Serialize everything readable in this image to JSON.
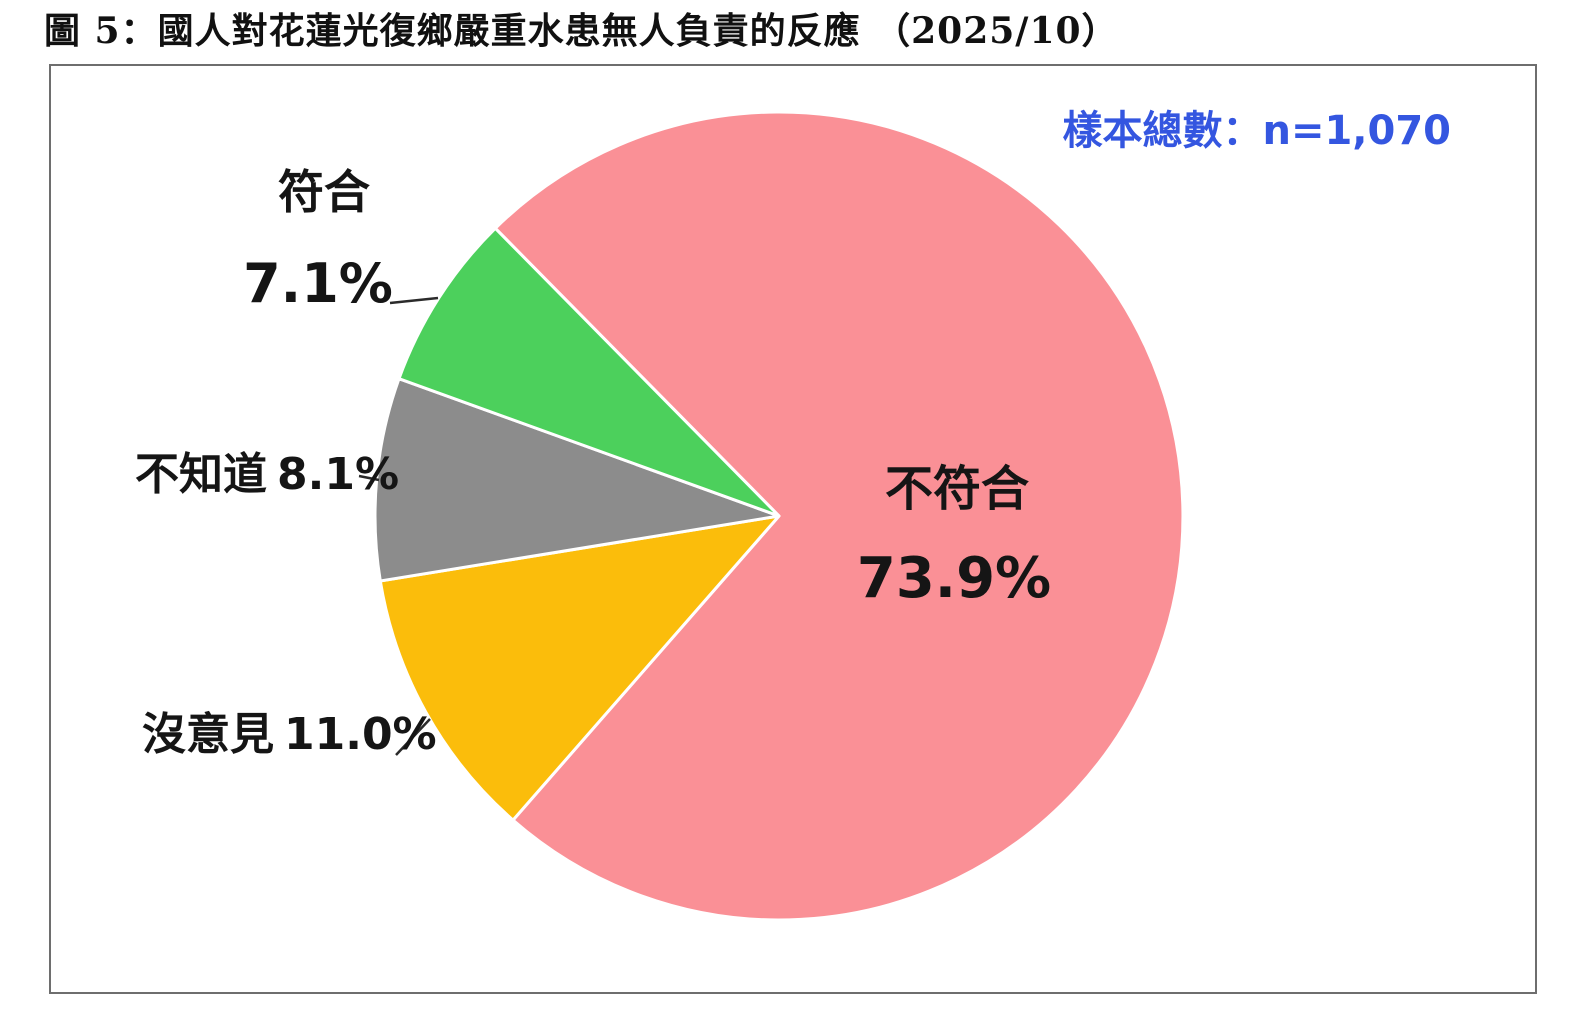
{
  "title": "圖 5：國人對花蓮光復鄉嚴重水患無人負責的反應 （2025/10）",
  "sample_note": "樣本總數：n=1,070",
  "colors": {
    "note_blue": "#3456E0",
    "box_border": "#6e6e6e",
    "label_text": "#151515",
    "leader_line": "#2b2b2b"
  },
  "chart_data": {
    "type": "pie",
    "title": "國人對花蓮光復鄉嚴重水患無人負責的反應 (2025/10)",
    "sample_size": "n=1,070",
    "direction": "clockwise",
    "start_angle_deg": -44.6,
    "legend_position": "none",
    "labels_on_chart": true,
    "segments": [
      {
        "id": "bufuhe",
        "label": "不符合",
        "value": 73.9,
        "display": "73.9%",
        "color": "#FA9096"
      },
      {
        "id": "meiyijian",
        "label": "沒意見",
        "value": 11.0,
        "display": "11.0%",
        "color": "#FBBD0B"
      },
      {
        "id": "buzhidao",
        "label": "不知道",
        "value": 8.1,
        "display": "8.1%",
        "color": "#8C8C8C"
      },
      {
        "id": "fuhe",
        "label": "符合",
        "value": 7.1,
        "display": "7.1%",
        "color": "#4CD05C"
      }
    ]
  }
}
